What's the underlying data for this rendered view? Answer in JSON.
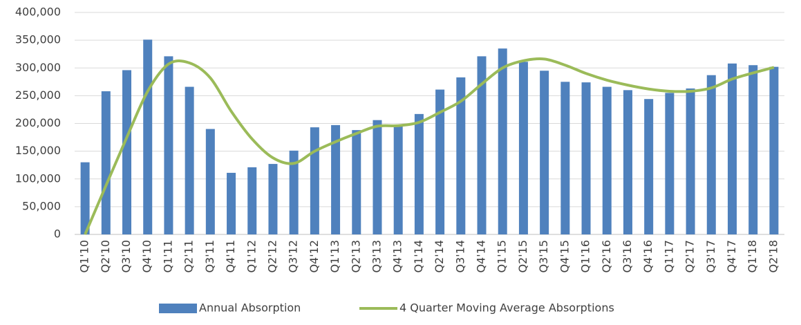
{
  "chart_data": {
    "type": "bar-line",
    "categories": [
      "Q1'10",
      "Q2'10",
      "Q3'10",
      "Q4'10",
      "Q1'11",
      "Q2'11",
      "Q3'11",
      "Q4'11",
      "Q1'12",
      "Q2'12",
      "Q3'12",
      "Q4'12",
      "Q1'13",
      "Q2'13",
      "Q3'13",
      "Q4'13",
      "Q1'14",
      "Q2'14",
      "Q3'14",
      "Q4'14",
      "Q1'15",
      "Q2'15",
      "Q3'15",
      "Q4'15",
      "Q1'16",
      "Q2'16",
      "Q3'16",
      "Q4'16",
      "Q1'17",
      "Q2'17",
      "Q3'17",
      "Q4'17",
      "Q1'18",
      "Q2'18"
    ],
    "series": [
      {
        "name": "Annual Absorption",
        "type": "bar",
        "color": "#4f81bd",
        "values": [
          130000,
          258000,
          296000,
          351000,
          321000,
          266000,
          190000,
          111000,
          121000,
          127000,
          151000,
          193000,
          197000,
          188000,
          206000,
          196000,
          217000,
          261000,
          283000,
          321000,
          335000,
          311000,
          295000,
          275000,
          274000,
          266000,
          260000,
          244000,
          255000,
          263000,
          287000,
          308000,
          305000,
          302000
        ]
      },
      {
        "name": "4 Quarter Moving Average Absorptions",
        "type": "line",
        "color": "#9bbb59",
        "values": [
          0,
          88000,
          175000,
          258000,
          307000,
          309000,
          282000,
          222000,
          172000,
          138000,
          128000,
          150000,
          167000,
          182000,
          195000,
          196000,
          202000,
          220000,
          240000,
          271000,
          300000,
          313000,
          316000,
          305000,
          290000,
          278000,
          269000,
          262000,
          258000,
          258000,
          264000,
          280000,
          291000,
          301000
        ]
      }
    ],
    "ylim": [
      0,
      400000
    ],
    "yticks": [
      0,
      {
        "value": 50000,
        "label": "50,000"
      },
      {
        "value": 100000,
        "label": "100,000"
      },
      {
        "value": 150000,
        "label": "150,000"
      },
      {
        "value": 200000,
        "label": "200,000"
      },
      {
        "value": 250000,
        "label": "250,000"
      },
      {
        "value": 300000,
        "label": "300,000"
      },
      {
        "value": 350000,
        "label": "350,000"
      },
      {
        "value": 400000,
        "label": "400,000"
      }
    ],
    "grid": true,
    "legend": "bottom"
  }
}
